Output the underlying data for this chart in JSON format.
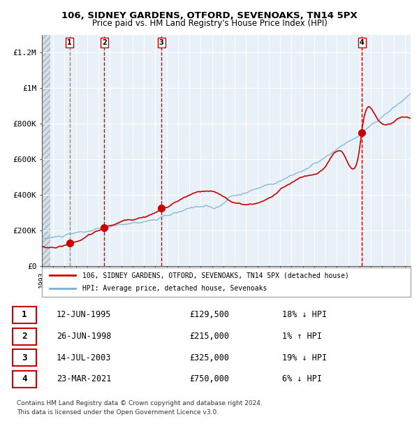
{
  "title1": "106, SIDNEY GARDENS, OTFORD, SEVENOAKS, TN14 5PX",
  "title2": "Price paid vs. HM Land Registry's House Price Index (HPI)",
  "ylabel_ticks": [
    "£0",
    "£200K",
    "£400K",
    "£600K",
    "£800K",
    "£1M",
    "£1.2M"
  ],
  "ytick_values": [
    0,
    200000,
    400000,
    600000,
    800000,
    1000000,
    1200000
  ],
  "ylim": [
    0,
    1300000
  ],
  "xlim_start": 1993.0,
  "xlim_end": 2025.5,
  "purchases": [
    {
      "num": 1,
      "date": "12-JUN-1995",
      "year": 1995.45,
      "price": 129500,
      "hpi_diff": "18% ↓ HPI"
    },
    {
      "num": 2,
      "date": "26-JUN-1998",
      "year": 1998.49,
      "price": 215000,
      "hpi_diff": "1% ↑ HPI"
    },
    {
      "num": 3,
      "date": "14-JUL-2003",
      "year": 2003.54,
      "price": 325000,
      "hpi_diff": "19% ↓ HPI"
    },
    {
      "num": 4,
      "date": "23-MAR-2021",
      "year": 2021.22,
      "price": 750000,
      "hpi_diff": "6% ↓ HPI"
    }
  ],
  "legend_entries": [
    "106, SIDNEY GARDENS, OTFORD, SEVENOAKS, TN14 5PX (detached house)",
    "HPI: Average price, detached house, Sevenoaks"
  ],
  "footer1": "Contains HM Land Registry data © Crown copyright and database right 2024.",
  "footer2": "This data is licensed under the Open Government Licence v3.0.",
  "hatch_color": "#aaaaaa",
  "bg_color": "#dce9f5",
  "plot_bg": "#e8f0f8",
  "hatch_bg": "#c8d8e8",
  "grid_color": "#ffffff",
  "red_line_color": "#cc0000",
  "blue_line_color": "#7ab0d4",
  "dashed_vline_color_red": "#dd0000",
  "dashed_vline_color_grey": "#888888",
  "purchase_marker_color": "#cc0000",
  "table_border_color": "#cc0000"
}
